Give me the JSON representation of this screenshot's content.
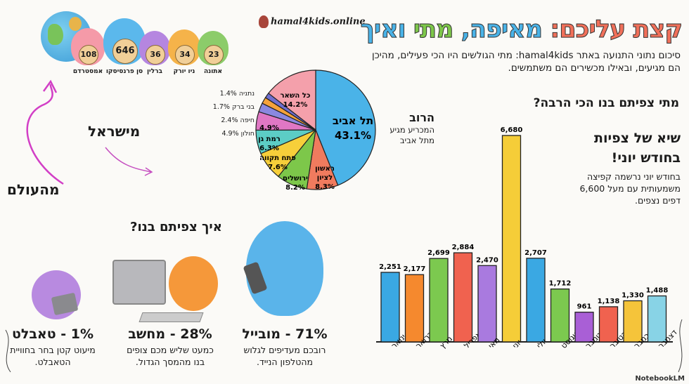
{
  "header": {
    "title_parts": [
      {
        "text": "קצת עליכם: ",
        "color": "#f0705a"
      },
      {
        "text": "מאיפה, ",
        "color": "#4ab3e8"
      },
      {
        "text": "מתי ",
        "color": "#7dc74a"
      },
      {
        "text": "ואיך",
        "color": "#4ab3e8"
      }
    ],
    "subtitle": "סיכום נתוני התנועה באתר hamal4kids: מתי הגולשים היו הכי פעילים, מהיכן הם מגיעים, ובאילו מכשירים הם משתמשים."
  },
  "logo": {
    "text": "hamal4kids.online"
  },
  "world": {
    "label": "מהעולם",
    "cities": [
      {
        "name": "אמסטרדם",
        "value": 108,
        "color": "#f59aa8"
      },
      {
        "name": "סן פרנסיסקו",
        "value": 646,
        "color": "#5bb8ec"
      },
      {
        "name": "ברלין",
        "value": 36,
        "color": "#b586e0"
      },
      {
        "name": "ניו יורק",
        "value": 34,
        "color": "#f5b34a"
      },
      {
        "name": "אתונה",
        "value": 23,
        "color": "#8ccc6a"
      }
    ]
  },
  "israel": {
    "label": "מישראל",
    "majority_title": "הרוב",
    "majority_text": "המכריע מגיע מתל אביב"
  },
  "when": {
    "heading": "מתי צפיתם בנו הכי הרבה?",
    "peak_title": "שיא של צפיות בחודש יוני!",
    "peak_text": "בחודש יוני נרשמה קפיצה משמעותית עם מעל 6,600 דפים נצפים."
  },
  "how": {
    "heading": "איך צפיתם בנו?",
    "devices": [
      {
        "label": "71% - מובייל",
        "text": "רובכם מעדיפים לגלוש מהטלפון הנייד.",
        "icon": "phone-icon"
      },
      {
        "label": "28% - מחשב",
        "text": "כמעט שליש מכם צופים בנו מהמסך הגדול.",
        "icon": "desktop-computer-icon"
      },
      {
        "label": "1% - טאבלט",
        "text": "מיעוט קטן בחר בחוויית הטאבלט.",
        "icon": "tablet-icon"
      }
    ]
  },
  "watermark": "NotebookLM",
  "chart_data": [
    {
      "type": "bar",
      "categories": [
        "ינואר",
        "פברואר",
        "מרץ",
        "אפריל",
        "מאי",
        "יוני",
        "יולי",
        "אוגוסט",
        "ספטמבר",
        "אוקטובר",
        "נובמבר",
        "דצמבר"
      ],
      "values": [
        2251,
        2177,
        2699,
        2884,
        2470,
        6680,
        2707,
        1712,
        961,
        1138,
        1330,
        1488
      ],
      "value_labels": [
        "2,251",
        "2,177",
        "2,699",
        "2,884",
        "2,470",
        "6,680",
        "2,707",
        "1,712",
        "961",
        "1,138",
        "1,330",
        "1,488"
      ],
      "colors": [
        "#3aa8e3",
        "#f5892e",
        "#7cc94f",
        "#f0624f",
        "#a97adf",
        "#f5cd38",
        "#3aa8e3",
        "#7cc94f",
        "#a95fd6",
        "#f0624f",
        "#f5c43a",
        "#88d3e6"
      ],
      "ylim": [
        0,
        6680
      ],
      "grid": false
    },
    {
      "type": "pie",
      "slices": [
        {
          "label": "תל אביב",
          "value": 43.1,
          "text": "43.1%",
          "color": "#4ab3e8"
        },
        {
          "label": "ראשון לציון",
          "value": 8.3,
          "text": "8.3%",
          "color": "#f07b5e"
        },
        {
          "label": "ירושלים",
          "value": 8.2,
          "text": "8.2%",
          "color": "#7dc74a"
        },
        {
          "label": "פתח תקווה",
          "value": 7.6,
          "text": "7.6%",
          "color": "#f7cf3a"
        },
        {
          "label": "רמת גן",
          "value": 6.3,
          "text": "6.3%",
          "color": "#5ccdc5"
        },
        {
          "label": "חולון",
          "value": 4.9,
          "text": "4.9%",
          "color": "#e077c4"
        },
        {
          "label": "חיפה",
          "value": 2.4,
          "text": "2.4%",
          "color": "#8a88e0"
        },
        {
          "label": "בני ברק",
          "value": 1.7,
          "text": "1.7%",
          "color": "#f5a23a"
        },
        {
          "label": "נתניה",
          "value": 1.4,
          "text": "1.4%",
          "color": "#6f6fcf"
        },
        {
          "label": "כל השאר",
          "value": 14.2,
          "text": "14.2%",
          "color": "#f4a0ab"
        }
      ],
      "outside_labels": [
        "1.4% נתניה",
        "1.7% בני ברק",
        "2.4% חיפה",
        "4.9% חולון"
      ]
    }
  ]
}
